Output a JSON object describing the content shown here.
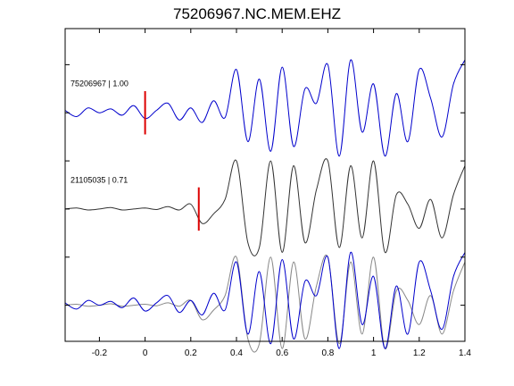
{
  "chart_data": {
    "type": "line",
    "title": "75206967.NC.MEM.EHZ",
    "xlabel": "",
    "ylabel": "",
    "xlim": [
      -0.35,
      1.4
    ],
    "ylim": [
      -0.75,
      5.75
    ],
    "xticks": [
      -0.2,
      0,
      0.2,
      0.4,
      0.6,
      0.8,
      1,
      1.2,
      1.4
    ],
    "xtick_labels": [
      "-0.2",
      "0",
      "0.2",
      "0.4",
      "0.6",
      "0.8",
      "1",
      "1.2",
      "1.4"
    ],
    "yticks": [
      0,
      1,
      2,
      3,
      4,
      5
    ],
    "grid": false,
    "colors": {
      "master": "#0000cc",
      "neighbor": "#333333",
      "overlay_neighbor": "#888888",
      "pick": "#dd0000"
    },
    "traces": [
      {
        "label": "75206967 | 1.00",
        "offset": 4,
        "color": "#0000cc",
        "pick_time": 0.0,
        "x": [
          -0.35,
          -0.3,
          -0.25,
          -0.2,
          -0.15,
          -0.1,
          -0.05,
          0.0,
          0.05,
          0.1,
          0.15,
          0.2,
          0.25,
          0.3,
          0.35,
          0.4,
          0.45,
          0.5,
          0.55,
          0.6,
          0.65,
          0.7,
          0.75,
          0.8,
          0.85,
          0.9,
          0.95,
          1.0,
          1.05,
          1.1,
          1.15,
          1.2,
          1.25,
          1.3,
          1.35,
          1.4
        ],
        "y": [
          0.05,
          -0.08,
          0.1,
          0.0,
          0.08,
          -0.05,
          0.15,
          -0.12,
          0.05,
          0.2,
          -0.15,
          0.1,
          -0.2,
          0.25,
          -0.1,
          0.9,
          -0.6,
          0.7,
          -0.8,
          0.95,
          -0.7,
          0.5,
          0.2,
          1.0,
          -0.9,
          1.1,
          -0.4,
          0.6,
          -0.9,
          0.4,
          -0.6,
          0.9,
          0.3,
          -0.5,
          0.6,
          1.1
        ]
      },
      {
        "label": "21105035 | 0.71",
        "offset": 2,
        "color": "#333333",
        "pick_time": 0.235,
        "x": [
          -0.35,
          -0.3,
          -0.25,
          -0.2,
          -0.15,
          -0.1,
          -0.05,
          0.0,
          0.05,
          0.1,
          0.15,
          0.2,
          0.25,
          0.3,
          0.35,
          0.4,
          0.45,
          0.5,
          0.55,
          0.6,
          0.65,
          0.7,
          0.75,
          0.8,
          0.85,
          0.9,
          0.95,
          1.0,
          1.05,
          1.1,
          1.15,
          1.2,
          1.25,
          1.3,
          1.35,
          1.4
        ],
        "y": [
          0.0,
          0.02,
          -0.02,
          0.0,
          0.03,
          -0.02,
          0.0,
          0.02,
          -0.01,
          0.05,
          -0.02,
          0.1,
          -0.3,
          -0.1,
          0.2,
          1.0,
          -0.7,
          -0.8,
          1.0,
          -0.9,
          0.9,
          -0.7,
          0.4,
          1.0,
          -0.8,
          0.9,
          -0.6,
          1.0,
          -0.9,
          0.3,
          0.1,
          -0.4,
          0.2,
          -0.6,
          0.3,
          0.9
        ]
      },
      {
        "label": "",
        "offset": 0,
        "color": "#0000cc",
        "x": [
          -0.35,
          -0.3,
          -0.25,
          -0.2,
          -0.15,
          -0.1,
          -0.05,
          0.0,
          0.05,
          0.1,
          0.15,
          0.2,
          0.25,
          0.3,
          0.35,
          0.4,
          0.45,
          0.5,
          0.55,
          0.6,
          0.65,
          0.7,
          0.75,
          0.8,
          0.85,
          0.9,
          0.95,
          1.0,
          1.05,
          1.1,
          1.15,
          1.2,
          1.25,
          1.3,
          1.35,
          1.4
        ],
        "y": [
          0.05,
          -0.08,
          0.1,
          0.0,
          0.08,
          -0.05,
          0.15,
          -0.12,
          0.05,
          0.2,
          -0.15,
          0.1,
          -0.2,
          0.25,
          -0.1,
          0.9,
          -0.6,
          0.7,
          -0.8,
          0.95,
          -0.7,
          0.5,
          0.2,
          1.0,
          -0.9,
          1.1,
          -0.4,
          0.6,
          -0.9,
          0.4,
          -0.6,
          0.9,
          0.3,
          -0.5,
          0.6,
          1.1
        ]
      },
      {
        "label": "",
        "offset": 0,
        "color": "#888888",
        "x": [
          -0.35,
          -0.3,
          -0.25,
          -0.2,
          -0.15,
          -0.1,
          -0.05,
          0.0,
          0.05,
          0.1,
          0.15,
          0.2,
          0.25,
          0.3,
          0.35,
          0.4,
          0.45,
          0.5,
          0.55,
          0.6,
          0.65,
          0.7,
          0.75,
          0.8,
          0.85,
          0.9,
          0.95,
          1.0,
          1.05,
          1.1,
          1.15,
          1.2,
          1.25,
          1.3,
          1.35,
          1.4
        ],
        "y": [
          0.0,
          0.02,
          -0.02,
          0.0,
          0.03,
          -0.02,
          0.0,
          0.02,
          -0.01,
          0.05,
          -0.02,
          0.1,
          -0.3,
          -0.1,
          0.2,
          1.0,
          -0.7,
          -0.8,
          1.0,
          -0.9,
          0.9,
          -0.7,
          0.4,
          1.0,
          -0.8,
          0.9,
          -0.6,
          1.0,
          -0.9,
          0.3,
          0.1,
          -0.4,
          0.2,
          -0.6,
          0.3,
          0.9
        ]
      }
    ]
  }
}
